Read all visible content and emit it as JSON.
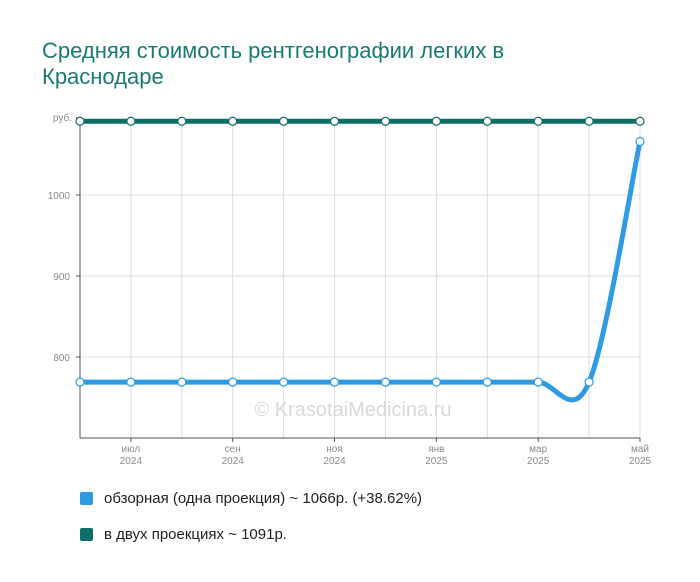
{
  "title_lines": [
    "Средняя стоимость рентгенографии легких в",
    "Краснодаре"
  ],
  "watermark": "© KrasotaiMedicina.ru",
  "legend": [
    {
      "label": "обзорная (одна проекция) ~ 1066р. (+38.62%)",
      "color": "#2e9be3"
    },
    {
      "label": "в двух проекциях ~ 1091р.",
      "color": "#0f6e68"
    }
  ],
  "chart_data": {
    "type": "line",
    "ylabel": "руб.",
    "ylim": [
      700,
      1095
    ],
    "y_ticks": [
      800,
      900,
      1000
    ],
    "x_count": 12,
    "x_ticks": [
      {
        "index": 1,
        "month": "июл",
        "year": "2024"
      },
      {
        "index": 3,
        "month": "сен",
        "year": "2024"
      },
      {
        "index": 5,
        "month": "ноя",
        "year": "2024"
      },
      {
        "index": 7,
        "month": "янв",
        "year": "2025"
      },
      {
        "index": 9,
        "month": "мар",
        "year": "2025"
      },
      {
        "index": 11,
        "month": "май",
        "year": "2025"
      }
    ],
    "series": [
      {
        "name": "обзорная (одна проекция)",
        "color": "#2e9be3",
        "values": [
          769,
          769,
          769,
          769,
          769,
          769,
          769,
          769,
          769,
          769,
          769,
          1066
        ]
      },
      {
        "name": "в двух проекциях",
        "color": "#0f6e68",
        "values": [
          1091,
          1091,
          1091,
          1091,
          1091,
          1091,
          1091,
          1091,
          1091,
          1091,
          1091,
          1091
        ]
      }
    ]
  }
}
